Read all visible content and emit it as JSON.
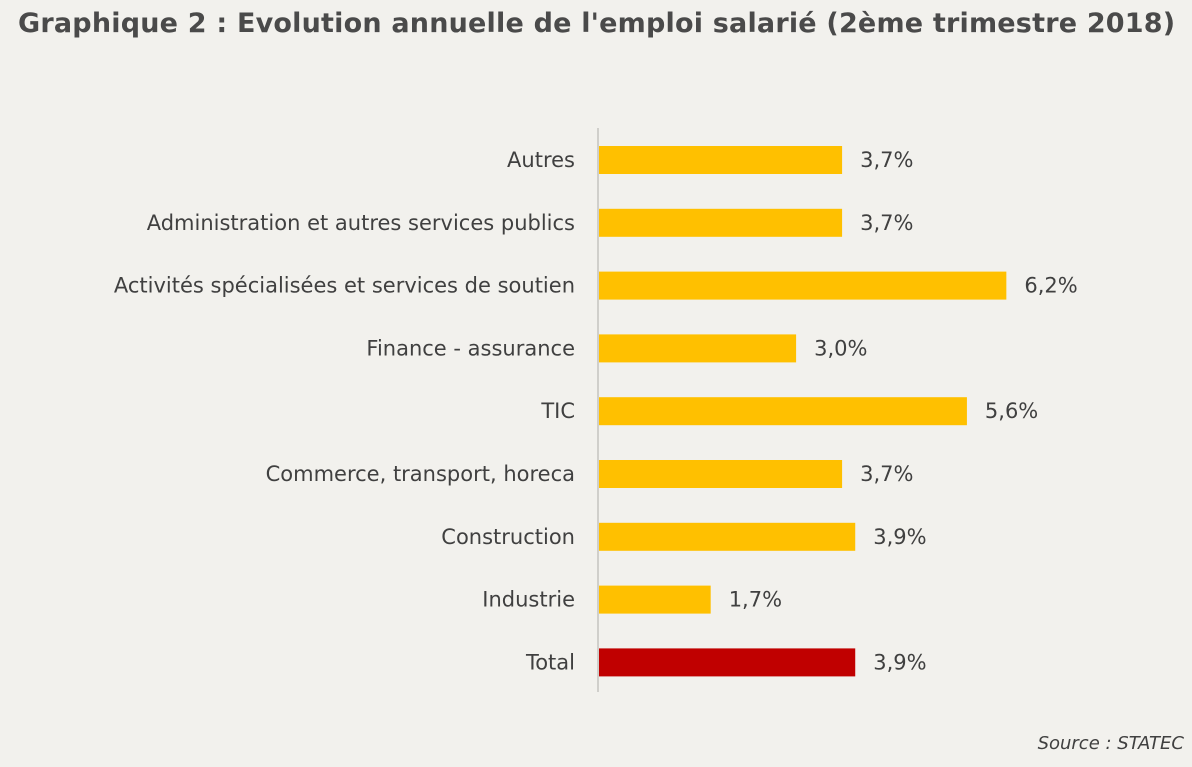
{
  "title": "Graphique 2 : Evolution annuelle de l'emploi salarié (2ème trimestre 2018)",
  "source": "Source : STATEC",
  "colors": {
    "bar": "#ffc000",
    "highlight": "#c00000",
    "axis": "#d0cfcb",
    "background": "#f2f1ed"
  },
  "chart_data": {
    "type": "bar",
    "orientation": "horizontal",
    "categories": [
      "Autres",
      "Administration et autres services publics",
      "Activités spécialisées et services de soutien",
      "Finance - assurance",
      "TIC",
      "Commerce, transport, horeca",
      "Construction",
      "Industrie",
      "Total"
    ],
    "values": [
      3.7,
      3.7,
      6.2,
      3.0,
      5.6,
      3.7,
      3.9,
      1.7,
      3.9
    ],
    "value_labels": [
      "3,7%",
      "3,7%",
      "6,2%",
      "3,0%",
      "5,6%",
      "3,7%",
      "3,9%",
      "1,7%",
      "3,9%"
    ],
    "highlight": [
      "Total"
    ],
    "unit": "%",
    "xlim": [
      0,
      6.2
    ],
    "grid": false,
    "legend": "none"
  }
}
